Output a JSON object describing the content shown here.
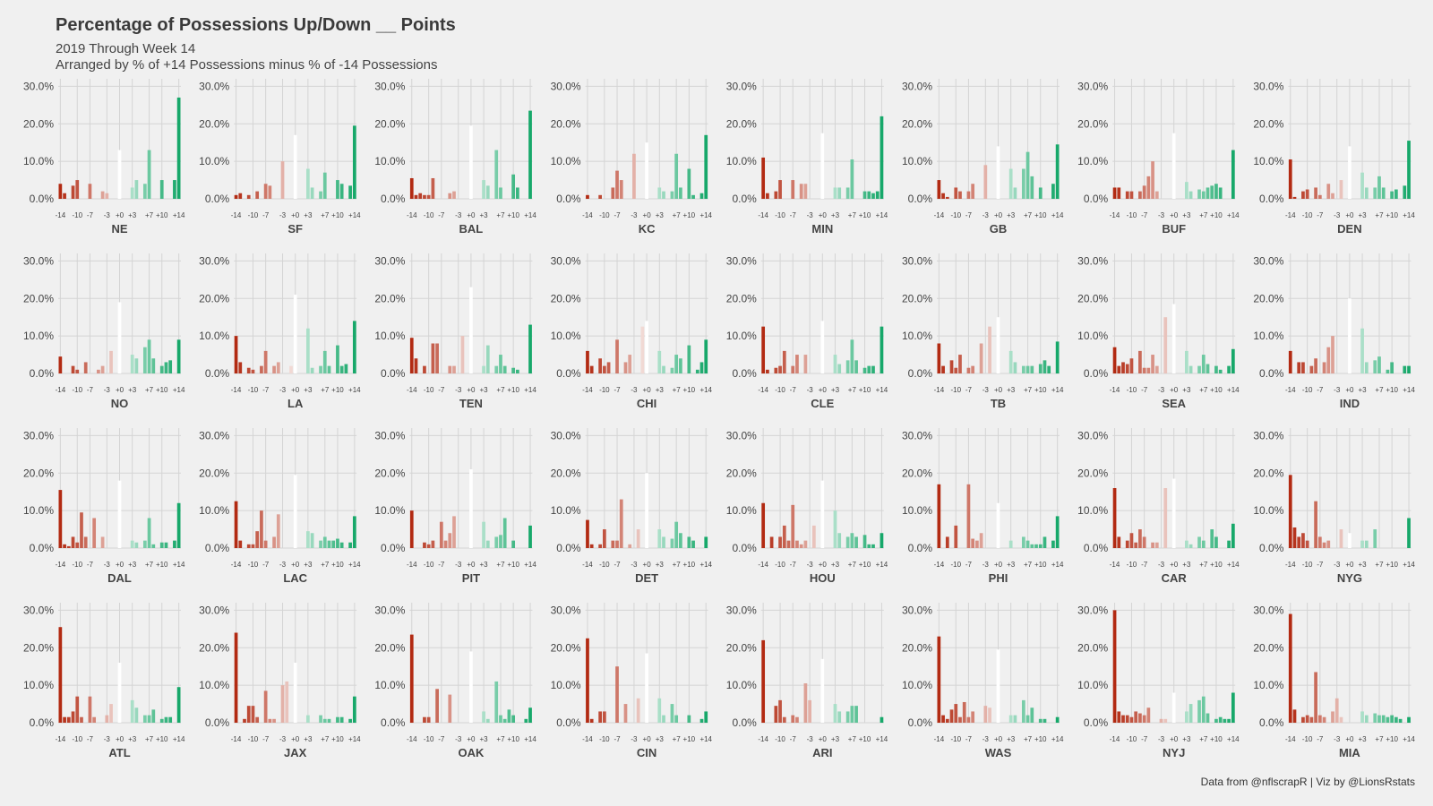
{
  "title": "Percentage of Possessions Up/Down __ Points",
  "subtitle_line1": "2019 Through Week 14",
  "subtitle_line2": "Arranged by % of +14 Possessions minus % of -14 Possessions",
  "caption": "Data from @nflscrapR | Viz by @LionsRstats",
  "colors": {
    "background": "#f0f0f0",
    "grid": "#d4d4d4",
    "negative_strong": "#b22a12",
    "neutral": "#ffffff",
    "positive_strong": "#17a86a"
  },
  "chart_data": {
    "type": "bar",
    "facet_layout": "4 rows x 8 columns",
    "x": [
      -14,
      -13,
      -12,
      -11,
      -10,
      -9,
      -8,
      -7,
      -6,
      -5,
      -4,
      -3,
      -2,
      -1,
      0,
      1,
      2,
      3,
      4,
      5,
      6,
      7,
      8,
      9,
      10,
      11,
      12,
      13,
      14
    ],
    "x_tick_labels": [
      "-14",
      "-10",
      "-7",
      "-3",
      "+0",
      "+3",
      "+7",
      "+10",
      "+14"
    ],
    "x_tick_values": [
      -14,
      -10,
      -7,
      -3,
      0,
      3,
      7,
      10,
      14
    ],
    "y_tick_labels": [
      "0.0%",
      "10.0%",
      "20.0%",
      "30.0%"
    ],
    "y_tick_values": [
      0,
      10,
      20,
      30
    ],
    "ylim": [
      0,
      32
    ],
    "grid": true,
    "legend": "none",
    "panels": [
      {
        "team": "NE",
        "values": [
          4,
          1.5,
          0,
          3.5,
          5,
          0,
          0,
          4,
          0,
          0,
          2,
          1.5,
          0,
          0,
          13,
          0,
          0,
          3,
          5,
          0,
          4,
          13,
          0,
          0,
          5,
          0,
          0,
          5,
          27
        ]
      },
      {
        "team": "SF",
        "values": [
          1,
          1.5,
          0,
          1,
          0,
          2,
          0,
          4,
          3.5,
          0,
          0,
          10,
          0,
          0,
          17,
          0,
          0,
          8,
          3,
          0,
          2,
          7,
          0,
          0,
          5,
          4,
          0,
          3.5,
          19.5
        ]
      },
      {
        "team": "BAL",
        "values": [
          5.5,
          1,
          1.5,
          1,
          1,
          5.5,
          0,
          0,
          0,
          1.5,
          2,
          0,
          0,
          0,
          19.5,
          0,
          0,
          5,
          3.5,
          0,
          13,
          3,
          0,
          0,
          6.5,
          3,
          0,
          0,
          23.5
        ]
      },
      {
        "team": "KC",
        "values": [
          1,
          0,
          0,
          1,
          0,
          0,
          3,
          7.5,
          5,
          0,
          0,
          12,
          0,
          0,
          15,
          0,
          0,
          3,
          2,
          0,
          2,
          12,
          3,
          0,
          8,
          1,
          0,
          1.5,
          17
        ]
      },
      {
        "team": "MIN",
        "values": [
          11,
          1.5,
          0,
          2,
          5,
          0,
          0,
          5,
          0,
          4,
          4,
          0,
          0,
          0,
          17.5,
          0,
          0,
          3,
          3,
          0,
          3,
          10.5,
          0,
          0,
          2,
          2,
          1.5,
          2,
          22
        ]
      },
      {
        "team": "GB",
        "values": [
          5,
          1.5,
          0.5,
          0,
          3,
          2,
          0,
          2,
          4,
          0,
          0,
          9,
          0,
          0,
          14,
          0,
          0,
          8,
          3,
          0,
          8,
          12.5,
          6,
          0,
          3,
          0,
          0,
          4,
          14.5
        ]
      },
      {
        "team": "BUF",
        "values": [
          3,
          3,
          0,
          2,
          2,
          0,
          2,
          3.5,
          6,
          10,
          2,
          0,
          0,
          0,
          17.5,
          0,
          0,
          4.5,
          2,
          0,
          2.5,
          2,
          3,
          3.5,
          4,
          3,
          0,
          0,
          13
        ]
      },
      {
        "team": "DEN",
        "values": [
          10.5,
          0.5,
          0,
          2,
          2.5,
          0,
          3,
          1,
          0,
          4,
          1.5,
          0,
          5,
          0,
          14,
          0,
          0,
          7,
          3,
          0,
          3,
          6,
          3,
          0,
          2,
          2.5,
          0,
          3.5,
          15.5
        ]
      },
      {
        "team": "NO",
        "values": [
          4.5,
          0,
          0,
          2,
          1,
          0,
          3,
          0,
          0,
          1,
          2,
          0,
          6,
          0,
          19,
          0,
          0,
          5,
          4,
          0,
          7,
          9,
          4,
          0,
          2,
          3,
          3.5,
          0,
          9
        ]
      },
      {
        "team": "LA",
        "values": [
          10,
          3,
          0,
          1.5,
          1,
          0,
          2,
          6,
          0,
          2,
          3,
          0,
          0,
          2,
          21,
          0,
          0,
          12,
          1.5,
          0,
          2,
          6,
          2,
          0,
          7.5,
          2,
          2.5,
          0,
          14
        ]
      },
      {
        "team": "TEN",
        "values": [
          9.5,
          4,
          0,
          2,
          0,
          8,
          8,
          0,
          0,
          2,
          2,
          0,
          10,
          0,
          23,
          0,
          0,
          2,
          7.5,
          0,
          2,
          5,
          2,
          0,
          1.5,
          1,
          0,
          0,
          13
        ]
      },
      {
        "team": "CHI",
        "values": [
          6,
          2,
          0,
          4,
          2,
          3,
          0,
          9,
          0,
          3,
          5,
          0,
          0,
          12.5,
          14,
          0,
          0,
          6,
          2,
          0,
          1.5,
          5,
          4,
          0,
          7.5,
          0,
          1,
          3,
          9
        ]
      },
      {
        "team": "CLE",
        "values": [
          12.5,
          1,
          0,
          1.5,
          2,
          6,
          0,
          2,
          5,
          0,
          5,
          0,
          0,
          0,
          14,
          0,
          0,
          5,
          2.5,
          0,
          3.5,
          9,
          3.5,
          0,
          1.5,
          2,
          2,
          0,
          12.5
        ]
      },
      {
        "team": "TB",
        "values": [
          8,
          2,
          0,
          3.5,
          1.5,
          5,
          0,
          1.5,
          2,
          0,
          8,
          0,
          12.5,
          0,
          15,
          0,
          0,
          6,
          3,
          0,
          2,
          2,
          2,
          0,
          2.5,
          3.5,
          2,
          0,
          8.5
        ]
      },
      {
        "team": "SEA",
        "values": [
          7,
          2,
          3,
          2.5,
          4,
          0,
          6,
          1.5,
          1.5,
          5,
          2,
          0,
          15,
          0,
          18.5,
          0,
          0,
          6,
          2,
          0,
          2,
          5,
          2.5,
          0,
          2,
          1,
          0,
          2,
          6.5
        ]
      },
      {
        "team": "IND",
        "values": [
          6,
          0,
          3,
          3,
          0,
          2,
          4,
          0,
          3,
          7,
          10,
          0,
          0,
          0,
          20,
          0,
          0,
          12,
          3,
          0,
          3.5,
          4.5,
          0,
          1,
          3,
          0,
          0,
          2,
          2
        ]
      },
      {
        "team": "DAL",
        "values": [
          15.5,
          1,
          0.5,
          3,
          1.5,
          9.5,
          3,
          0,
          8,
          0,
          3,
          0,
          0,
          0,
          18,
          0,
          0,
          2,
          1.5,
          0,
          2,
          8,
          1,
          0,
          1.5,
          1.5,
          0,
          2,
          12
        ]
      },
      {
        "team": "LAC",
        "values": [
          12.5,
          2,
          0,
          1,
          1,
          4.5,
          10,
          2,
          0,
          3,
          9,
          0,
          0,
          0,
          19.5,
          0,
          0,
          4.5,
          4,
          0,
          2,
          3,
          2,
          2,
          2.5,
          1.5,
          0,
          1.5,
          8.5
        ]
      },
      {
        "team": "PIT",
        "values": [
          10,
          0,
          0,
          1.5,
          1,
          2,
          0,
          7,
          2,
          4,
          8.5,
          0,
          0,
          0,
          21,
          0,
          0,
          7,
          2,
          0,
          3,
          3.5,
          8,
          0,
          2,
          0,
          0,
          0,
          6
        ]
      },
      {
        "team": "DET",
        "values": [
          7.5,
          1,
          0,
          1,
          5,
          0,
          2,
          2,
          13,
          0,
          1,
          0,
          5,
          0,
          20,
          0,
          0,
          5,
          3,
          0,
          2.5,
          7,
          4,
          0,
          3,
          2,
          0,
          0,
          3
        ]
      },
      {
        "team": "HOU",
        "values": [
          12,
          0,
          3,
          0,
          3,
          6,
          2,
          11.5,
          2,
          1,
          2,
          0,
          6,
          0,
          18,
          0,
          0,
          10,
          4,
          0,
          3,
          4,
          3,
          0,
          3.5,
          1,
          1,
          0,
          4
        ]
      },
      {
        "team": "PHI",
        "values": [
          17,
          0,
          3,
          0,
          6,
          0,
          0,
          17,
          2.5,
          2,
          4,
          0,
          0,
          0,
          12,
          0,
          0,
          2,
          0,
          0,
          3,
          2,
          1,
          1,
          1,
          3,
          0,
          2,
          8.5
        ]
      },
      {
        "team": "CAR",
        "values": [
          16,
          3,
          0,
          2,
          4,
          1.5,
          5,
          3,
          0,
          1.5,
          1.5,
          0,
          16,
          0,
          18.5,
          0,
          0,
          2,
          1,
          0,
          3,
          2,
          0,
          5,
          3,
          0,
          0,
          2,
          6.5
        ]
      },
      {
        "team": "NYG",
        "values": [
          19.5,
          5.5,
          3,
          4,
          2,
          0,
          12.5,
          3,
          1.5,
          2,
          0,
          0,
          5,
          0,
          4,
          0,
          0,
          2,
          2,
          0,
          5,
          0,
          0,
          0,
          0,
          0,
          0,
          0,
          8
        ]
      },
      {
        "team": "ATL",
        "values": [
          25.5,
          1.5,
          1.5,
          3,
          7,
          1.5,
          0,
          7,
          1.5,
          0,
          0,
          2,
          5,
          0,
          16,
          0,
          0,
          6,
          4,
          0,
          2,
          2,
          3.5,
          0,
          1,
          1.5,
          1.5,
          0,
          9.5
        ]
      },
      {
        "team": "JAX",
        "values": [
          24,
          0,
          1,
          4.5,
          4.5,
          1.5,
          0,
          8.5,
          1,
          1,
          0,
          10,
          11,
          0,
          16,
          0,
          0,
          2,
          0,
          0,
          2,
          1,
          1,
          0,
          1.5,
          1.5,
          0,
          1,
          7
        ]
      },
      {
        "team": "OAK",
        "values": [
          23.5,
          0,
          0,
          1.5,
          1.5,
          0,
          9,
          0,
          0,
          7.5,
          0,
          0,
          0,
          0,
          19,
          0,
          0,
          3,
          1,
          0,
          11,
          2,
          1,
          3.5,
          2,
          0,
          0,
          1,
          4
        ]
      },
      {
        "team": "CIN",
        "values": [
          22.5,
          1,
          0,
          3,
          3,
          0,
          0,
          15,
          0,
          5,
          0,
          0,
          6.5,
          0,
          18.5,
          0,
          0,
          6.5,
          2,
          0,
          5,
          2,
          0,
          0,
          2,
          0,
          0,
          1,
          3
        ]
      },
      {
        "team": "ARI",
        "values": [
          22,
          0,
          0,
          4.5,
          6,
          1.5,
          0,
          2,
          1.5,
          0,
          10.5,
          6,
          0,
          0,
          17,
          0,
          0,
          5,
          3,
          0,
          3,
          4.5,
          4.5,
          0,
          0,
          0,
          0,
          0,
          1.5
        ]
      },
      {
        "team": "WAS",
        "values": [
          23,
          2,
          1,
          3.5,
          5,
          1.5,
          5.5,
          1.5,
          3,
          0,
          0,
          4.5,
          4,
          0,
          19.5,
          0,
          0,
          2,
          2,
          0,
          6,
          2,
          4,
          0,
          1,
          1,
          0,
          0,
          1.5
        ]
      },
      {
        "team": "NYJ",
        "values": [
          30,
          3,
          2,
          2,
          1.5,
          3,
          2.5,
          2,
          4,
          0,
          0,
          1,
          1,
          0,
          8,
          0,
          0,
          3,
          5,
          0,
          6,
          7,
          2.5,
          0,
          1,
          1.5,
          1,
          1,
          8
        ]
      },
      {
        "team": "MIA",
        "values": [
          29,
          3.5,
          0,
          1.5,
          2,
          1.5,
          13.5,
          2,
          1.5,
          0,
          3,
          6.5,
          1.5,
          0,
          0,
          0,
          0,
          3,
          2,
          0,
          2.5,
          2,
          2,
          1.5,
          2,
          1.5,
          1,
          0,
          1.5
        ]
      }
    ]
  }
}
